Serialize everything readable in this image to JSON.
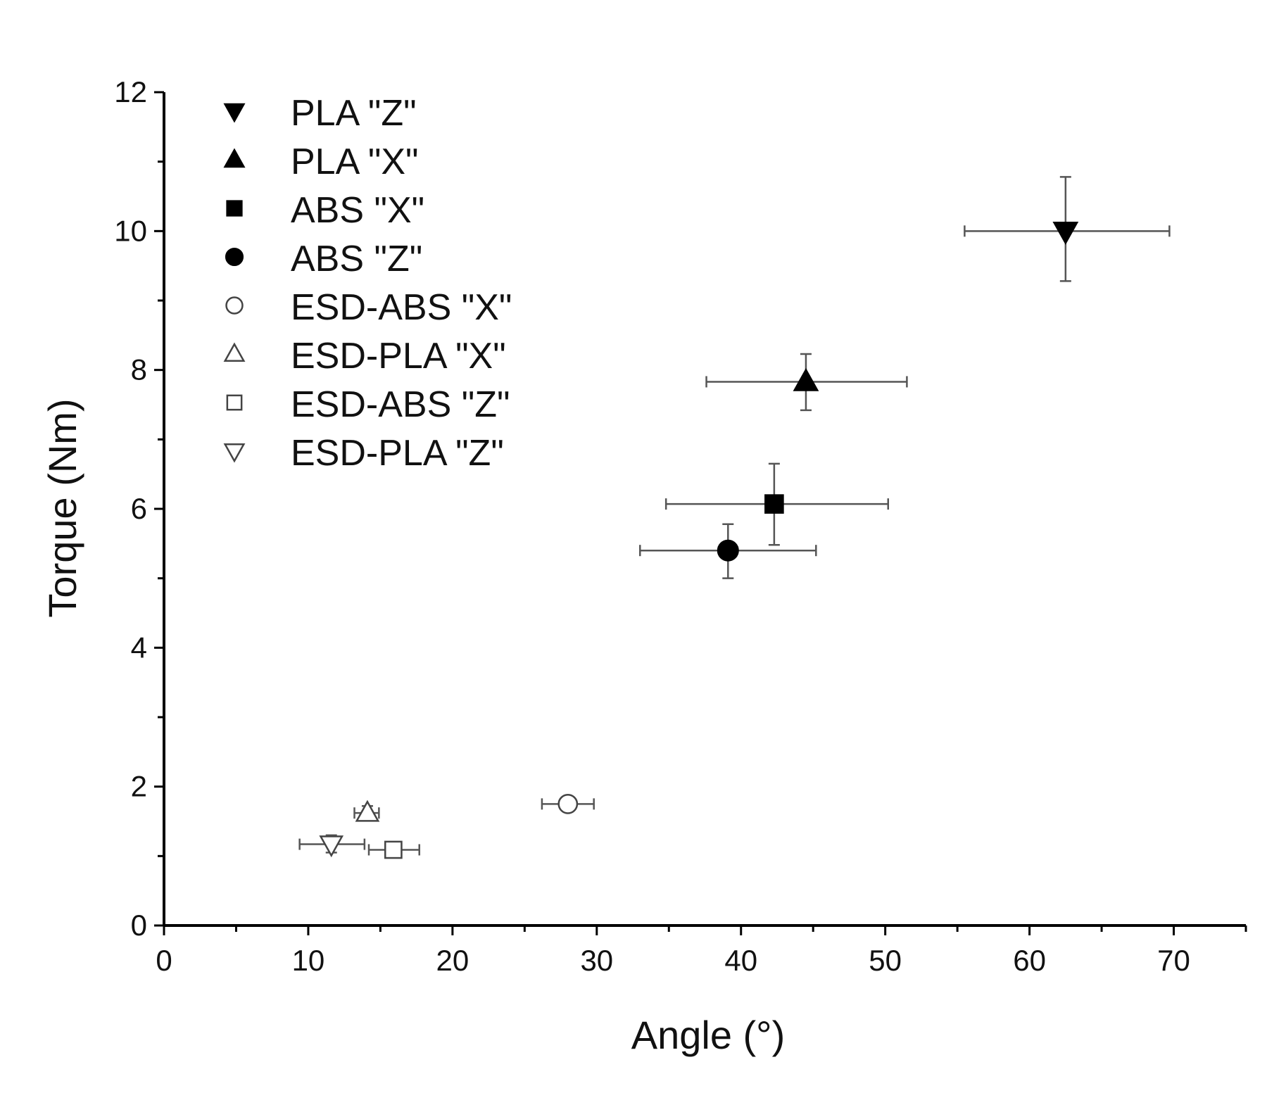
{
  "chart_data": {
    "type": "scatter",
    "title": "",
    "xlabel": "Angle (°)",
    "ylabel": "Torque (Nm)",
    "xlim": [
      0,
      75
    ],
    "ylim": [
      0,
      12
    ],
    "xticks": [
      0,
      10,
      20,
      30,
      40,
      50,
      60,
      70
    ],
    "yticks": [
      0,
      2,
      4,
      6,
      8,
      10,
      12
    ],
    "grid": false,
    "legend_position": "top-left",
    "series": [
      {
        "name": "PLA \"Z\"",
        "marker": "triangle-down",
        "filled": true,
        "x": 62.5,
        "y": 10.0,
        "xerr": [
          55.5,
          69.7
        ],
        "yerr": [
          9.28,
          10.78
        ]
      },
      {
        "name": "PLA \"X\"",
        "marker": "triangle-up",
        "filled": true,
        "x": 44.5,
        "y": 7.83,
        "xerr": [
          37.6,
          51.5
        ],
        "yerr": [
          7.42,
          8.23
        ]
      },
      {
        "name": "ABS \"X\"",
        "marker": "square",
        "filled": true,
        "x": 42.3,
        "y": 6.07,
        "xerr": [
          34.8,
          50.2
        ],
        "yerr": [
          5.48,
          6.65
        ]
      },
      {
        "name": "ABS \"Z\"",
        "marker": "circle",
        "filled": true,
        "x": 39.1,
        "y": 5.4,
        "xerr": [
          33.0,
          45.2
        ],
        "yerr": [
          5.0,
          5.78
        ]
      },
      {
        "name": "ESD-ABS \"X\"",
        "marker": "circle",
        "filled": false,
        "x": 28.0,
        "y": 1.75,
        "xerr": [
          26.2,
          29.8
        ],
        "yerr": [
          1.65,
          1.85
        ]
      },
      {
        "name": "ESD-PLA \"X\"",
        "marker": "triangle-up",
        "filled": false,
        "x": 14.1,
        "y": 1.62,
        "xerr": [
          13.2,
          14.9
        ],
        "yerr": [
          1.52,
          1.72
        ]
      },
      {
        "name": "ESD-ABS \"Z\"",
        "marker": "square",
        "filled": false,
        "x": 15.9,
        "y": 1.09,
        "xerr": [
          14.2,
          17.7
        ],
        "yerr": [
          1.02,
          1.16
        ]
      },
      {
        "name": "ESD-PLA \"Z\"",
        "marker": "triangle-down",
        "filled": false,
        "x": 11.6,
        "y": 1.17,
        "xerr": [
          9.4,
          13.9
        ],
        "yerr": [
          1.05,
          1.3
        ]
      }
    ]
  }
}
